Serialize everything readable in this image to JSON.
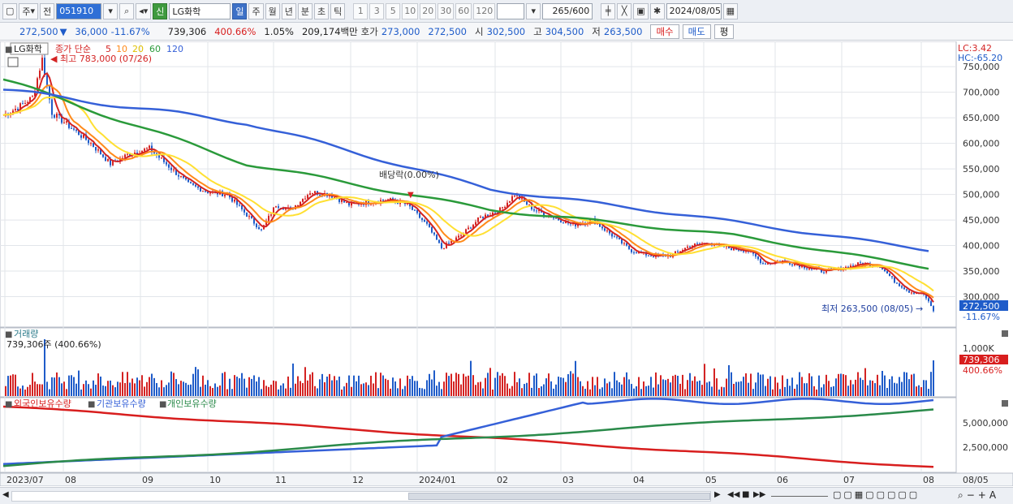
{
  "toolbar": {
    "market": "주",
    "prev": "전",
    "code": "051910",
    "name_badge": "신",
    "name": "LG화학",
    "periods": [
      "일",
      "주",
      "월",
      "년",
      "분",
      "초",
      "틱"
    ],
    "active_period": "일",
    "intervals": [
      "1",
      "3",
      "5",
      "10",
      "20",
      "30",
      "60",
      "120"
    ],
    "count": "265",
    "count_max": "/600",
    "date": "2024/08/05"
  },
  "quote": {
    "price": "272,500",
    "arrow": "▼",
    "change": "36,000",
    "change_pct": "-11.67%",
    "volume": "739,306",
    "vol_ratio": "400.66%",
    "turnover": "1.05%",
    "amount": "209,174백만",
    "bid_label": "호가",
    "ask": "273,000",
    "bid": "272,500",
    "open_label": "시",
    "open": "302,500",
    "high_label": "고",
    "high": "304,500",
    "low_label": "저",
    "low": "263,500",
    "buy_btn": "매수",
    "sell_btn": "매도",
    "eval_btn": "평"
  },
  "price_panel": {
    "stock_label": "LG화학",
    "ma_title": "종가 단순",
    "ma_periods": [
      "5",
      "10",
      "20",
      "60",
      "120"
    ],
    "ma_colors": [
      "#d42323",
      "#ff8a1a",
      "#ffe033",
      "#2a9a3a",
      "#3560d8"
    ],
    "max_note": "최고 783,000 (07/26)",
    "min_note": "최저 263,500 (08/05)",
    "dividend_note": "배당락(0.00%)",
    "lc": "LC:3.42",
    "hc": "HC:-65.20",
    "last_price_tag": "272,500",
    "last_pct_tag": "-11.67%",
    "y_ticks": [
      "750,000",
      "700,000",
      "650,000",
      "600,000",
      "550,000",
      "500,000",
      "450,000",
      "400,000",
      "350,000",
      "300,000"
    ]
  },
  "volume_panel": {
    "title": "거래량",
    "value_note": "739,306주 (400.66%)",
    "y_tick": "1,000K",
    "tag_value": "739,306",
    "tag_pct": "400.66%"
  },
  "holding_panel": {
    "series": [
      {
        "name": "외국인보유수량",
        "color": "#d81e1e"
      },
      {
        "name": "기관보유수량",
        "color": "#3560d8"
      },
      {
        "name": "개인보유수량",
        "color": "#2a8a4a"
      }
    ],
    "y_ticks": [
      "5,000,000",
      "2,500,000"
    ]
  },
  "x_axis": {
    "labels": [
      "2023/07",
      "08",
      "09",
      "10",
      "11",
      "12",
      "2024/01",
      "02",
      "03",
      "04",
      "05",
      "06",
      "07",
      "08"
    ],
    "right_label": "08/05"
  },
  "chart_data": {
    "type": "line",
    "title": "",
    "x_range": [
      "2023/07",
      "2024/08/05"
    ],
    "ylim": [
      250000,
      790000
    ],
    "price_close_approx": [
      [
        0,
        655000
      ],
      [
        6,
        670000
      ],
      [
        12,
        690000
      ],
      [
        16,
        765000
      ],
      [
        20,
        660000
      ],
      [
        28,
        630000
      ],
      [
        36,
        600000
      ],
      [
        44,
        560000
      ],
      [
        52,
        580000
      ],
      [
        60,
        590000
      ],
      [
        68,
        555000
      ],
      [
        76,
        520000
      ],
      [
        84,
        505000
      ],
      [
        92,
        500000
      ],
      [
        100,
        460000
      ],
      [
        106,
        430000
      ],
      [
        112,
        480000
      ],
      [
        118,
        470000
      ],
      [
        126,
        505000
      ],
      [
        134,
        500000
      ],
      [
        142,
        480000
      ],
      [
        150,
        485000
      ],
      [
        158,
        490000
      ],
      [
        166,
        480000
      ],
      [
        174,
        440000
      ],
      [
        180,
        395000
      ],
      [
        188,
        420000
      ],
      [
        196,
        455000
      ],
      [
        204,
        470000
      ],
      [
        210,
        500000
      ],
      [
        218,
        470000
      ],
      [
        226,
        455000
      ],
      [
        234,
        440000
      ],
      [
        242,
        450000
      ],
      [
        250,
        420000
      ],
      [
        258,
        390000
      ],
      [
        266,
        380000
      ],
      [
        274,
        380000
      ],
      [
        282,
        400000
      ],
      [
        290,
        405000
      ],
      [
        298,
        395000
      ],
      [
        306,
        390000
      ],
      [
        312,
        365000
      ],
      [
        320,
        370000
      ],
      [
        328,
        360000
      ],
      [
        336,
        350000
      ],
      [
        344,
        355000
      ],
      [
        352,
        365000
      ],
      [
        360,
        360000
      ],
      [
        366,
        330000
      ],
      [
        372,
        310000
      ],
      [
        378,
        305000
      ],
      [
        382,
        272500
      ]
    ],
    "ma120_approx": [
      [
        0,
        705000
      ],
      [
        100,
        640000
      ],
      [
        200,
        510000
      ],
      [
        280,
        460000
      ],
      [
        382,
        390000
      ]
    ],
    "ma60_approx": [
      [
        0,
        725000
      ],
      [
        100,
        560000
      ],
      [
        200,
        470000
      ],
      [
        300,
        420000
      ],
      [
        382,
        355000
      ]
    ],
    "volume_note": "739,306",
    "holding_series_note": "외국인 declines, 기관/개인 rise over period"
  }
}
